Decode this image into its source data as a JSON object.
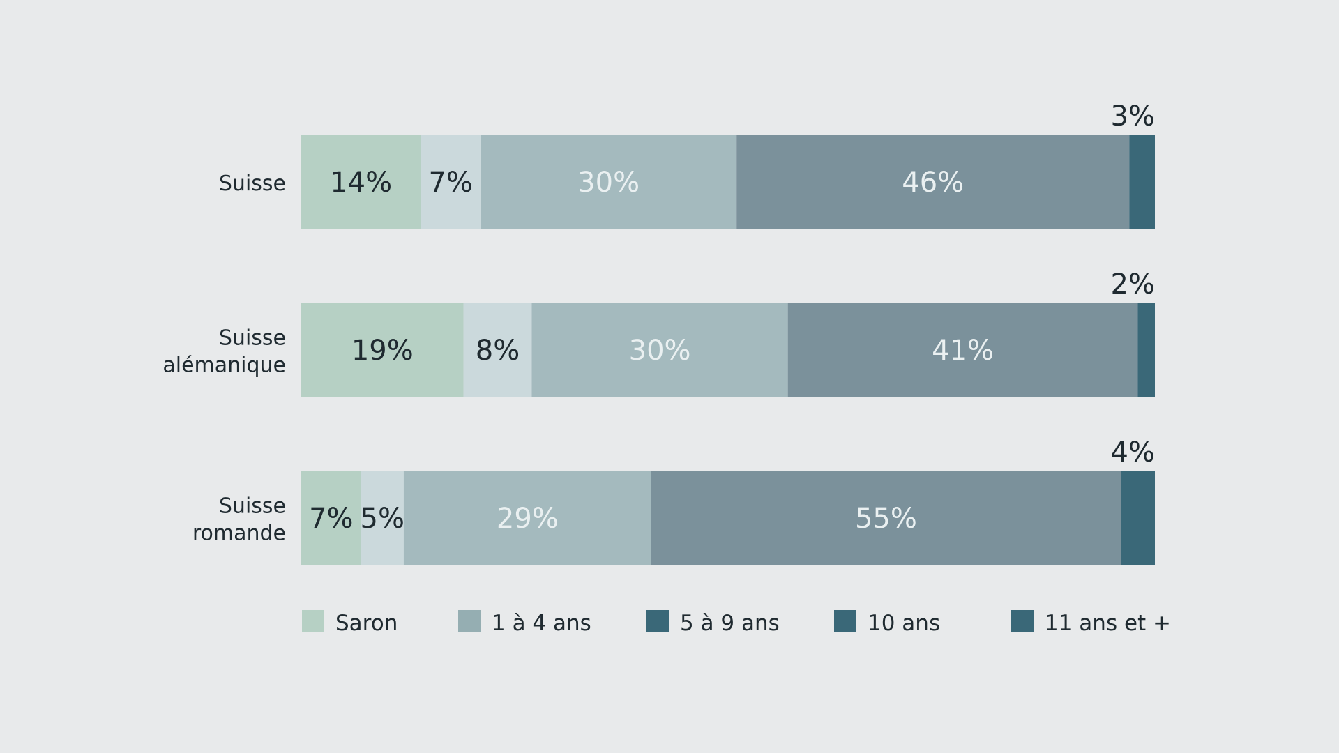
{
  "chart_data": {
    "type": "bar",
    "orientation": "horizontal",
    "stacked": true,
    "xlim": [
      0,
      100
    ],
    "grid": false,
    "legend_position": "bottom",
    "categories": [
      [
        "Suisse"
      ],
      [
        "Suisse",
        "alémanique"
      ],
      [
        "Suisse",
        "romande"
      ]
    ],
    "segment_display_values": [
      [
        14,
        7,
        30,
        46,
        3
      ],
      [
        19,
        8,
        30,
        41,
        2
      ],
      [
        7,
        5,
        29,
        55,
        4
      ]
    ],
    "segment_labels": [
      [
        "14%",
        "7%",
        "30%",
        "46%",
        "3%"
      ],
      [
        "19%",
        "8%",
        "30%",
        "41%",
        "2%"
      ],
      [
        "7%",
        "5%",
        "29%",
        "55%",
        "4%"
      ]
    ],
    "segment_colors": [
      "#b6d0c4",
      "#cbd9dc",
      "#a4babe",
      "#7b919b",
      "#3a6878"
    ],
    "segment_label_colors": [
      "#1f2a30",
      "#1f2a30",
      "#eaf0f1",
      "#eaf0f1",
      "#1f2a30"
    ],
    "legend": [
      {
        "label": "Saron",
        "color": "#b6d0c4"
      },
      {
        "label": "1 à 4 ans",
        "color": "#95aeb2"
      },
      {
        "label": "5 à 9 ans",
        "color": "#3a6878"
      },
      {
        "label": "10 ans",
        "color": "#3a6878"
      },
      {
        "label": "11 ans et +",
        "color": "#3a6878"
      }
    ]
  }
}
